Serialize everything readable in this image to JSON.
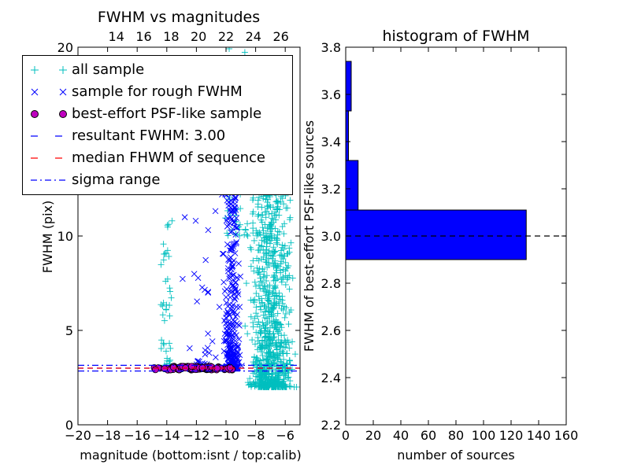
{
  "chart_data": [
    {
      "type": "scatter",
      "title": "FWHM vs magnitudes",
      "xlabel": "magnitude (bottom:isnt / top:calib)",
      "ylabel": "FWHM (pix)",
      "xlim": [
        -20,
        -5
      ],
      "ylim": [
        0,
        20
      ],
      "top_xlim": [
        11.2,
        27.4
      ],
      "x_ticks": [
        -20,
        -18,
        -16,
        -14,
        -12,
        -10,
        -8,
        -6
      ],
      "x_tick_labels": [
        "−20",
        "−18",
        "−16",
        "−14",
        "−12",
        "−10",
        "−8",
        "−6"
      ],
      "y_ticks": [
        0,
        5,
        10,
        20
      ],
      "y_tick_labels": [
        "0",
        "5",
        "10",
        "20"
      ],
      "top_ticks": [
        14,
        16,
        18,
        20,
        22,
        24,
        26
      ],
      "top_tick_labels": [
        "14",
        "16",
        "18",
        "20",
        "22",
        "24",
        "26"
      ],
      "grid": false,
      "legend_position": "top-left",
      "series": [
        {
          "name": "all sample",
          "marker": "+",
          "color": "#00bfbf",
          "clusters": [
            {
              "x_center": -7.0,
              "x_spread": 1.2,
              "y_min": 2.0,
              "y_max": 13.0,
              "count": 900
            },
            {
              "x_center": -14.0,
              "x_spread": 0.4,
              "y_min": 3.0,
              "y_max": 11.5,
              "count": 45
            },
            {
              "x_center": -9.0,
              "x_spread": 0.8,
              "y_min": 10.0,
              "y_max": 20.0,
              "count": 60
            }
          ]
        },
        {
          "name": "sample for rough FWHM",
          "marker": "x",
          "color": "#0000ff",
          "clusters": [
            {
              "x_center": -9.6,
              "x_spread": 0.5,
              "y_min": 3.0,
              "y_max": 12.8,
              "count": 300
            },
            {
              "x_center": -11.5,
              "x_spread": 1.0,
              "y_min": 3.2,
              "y_max": 12.5,
              "count": 30
            }
          ]
        },
        {
          "name": "best-effort PSF-like sample",
          "marker": "o",
          "color": "#bf00bf",
          "clusters": [
            {
              "x_center": -12.0,
              "x_spread": 2.3,
              "y_min": 2.9,
              "y_max": 3.1,
              "count": 110
            }
          ]
        }
      ],
      "lines": [
        {
          "name": "resultant FWHM: 3.00",
          "y": 3.0,
          "style": "dashed",
          "color": "#0000ff"
        },
        {
          "name": "median FHWM of sequence",
          "y": 3.0,
          "style": "dashed",
          "color": "#ff0000"
        },
        {
          "name": "sigma range",
          "y": [
            2.85,
            3.15
          ],
          "style": "dashdot",
          "color": "#0000ff"
        }
      ]
    },
    {
      "type": "bar",
      "orientation": "horizontal",
      "title": "histogram of FWHM",
      "xlabel": "number of sources",
      "ylabel": "FWHM of best-effort PSF-like sources",
      "xlim": [
        0,
        160
      ],
      "ylim": [
        2.2,
        3.8
      ],
      "x_ticks": [
        0,
        20,
        40,
        60,
        80,
        100,
        120,
        140,
        160
      ],
      "y_ticks": [
        2.2,
        2.4,
        2.6,
        2.8,
        3.0,
        3.2,
        3.4,
        3.6,
        3.8
      ],
      "y_tick_labels": [
        "2.2",
        "2.4",
        "2.6",
        "2.8",
        "3.0",
        "3.2",
        "3.4",
        "3.6",
        "3.8"
      ],
      "color": "#0000ff",
      "bins": [
        {
          "y0": 2.9,
          "y1": 3.11,
          "count": 131
        },
        {
          "y0": 3.11,
          "y1": 3.32,
          "count": 9
        },
        {
          "y0": 3.32,
          "y1": 3.53,
          "count": 2
        },
        {
          "y0": 3.53,
          "y1": 3.74,
          "count": 4
        }
      ],
      "reference_line": {
        "y": 3.0,
        "style": "dashed",
        "color": "#000000"
      }
    }
  ]
}
